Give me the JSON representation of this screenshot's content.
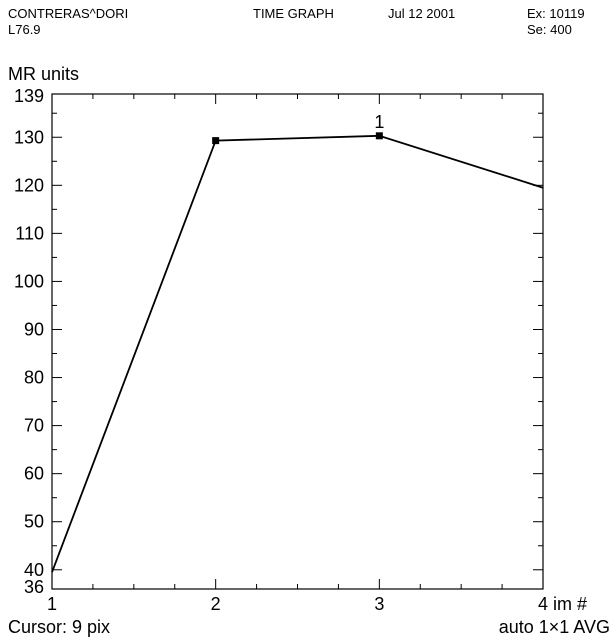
{
  "header": {
    "patient": "CONTRERAS^DORI",
    "location": "L76.9",
    "mode": "TIME GRAPH",
    "date": "Jul 12 2001",
    "exam": "Ex: 10119",
    "series": "Se: 400"
  },
  "footer": {
    "cursor": "Cursor: 9 pix",
    "roi": "auto 1×1 AVG"
  },
  "chart_data": {
    "type": "line",
    "ylabel": "MR units",
    "xlabel": "im #",
    "xlim": [
      1,
      4
    ],
    "ylim": [
      36,
      139
    ],
    "x_ticks": [
      1,
      2,
      3,
      4
    ],
    "x_tick_labels": [
      "1",
      "2",
      "3",
      "4"
    ],
    "y_ticks": [
      36,
      40,
      50,
      60,
      70,
      80,
      90,
      100,
      110,
      120,
      130,
      139
    ],
    "y_tick_labels": [
      "36",
      "40",
      "50",
      "60",
      "70",
      "80",
      "90",
      "100",
      "110",
      "120",
      "130",
      "139"
    ],
    "series": [
      {
        "label": "1",
        "x": [
          1,
          2,
          3,
          4
        ],
        "y": [
          39.5,
          129.3,
          130.3,
          119.5
        ]
      }
    ],
    "line_color": "#000000",
    "grid": false
  }
}
